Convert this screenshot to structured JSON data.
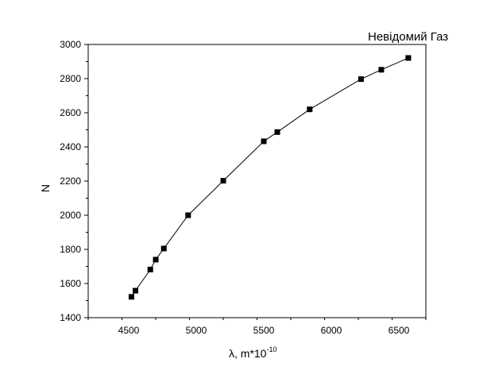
{
  "chart_data": {
    "type": "line",
    "title": "Невідомий Газ",
    "xlabel_main": "λ, m*10",
    "xlabel_exponent": "-10",
    "ylabel": "N",
    "xlim": [
      4200,
      6700
    ],
    "ylim": [
      1400,
      3000
    ],
    "xticks": [
      4500,
      5000,
      5500,
      6000,
      6500
    ],
    "yticks": [
      1400,
      1600,
      1800,
      2000,
      2200,
      2400,
      2600,
      2800,
      3000
    ],
    "grid": false,
    "marker": "square",
    "series": [
      {
        "x": [
          4520,
          4550,
          4660,
          4700,
          4760,
          4940,
          5200,
          5500,
          5600,
          5840,
          6220,
          6370,
          6570
        ],
        "y": [
          1522,
          1558,
          1682,
          1740,
          1805,
          2000,
          2202,
          2433,
          2487,
          2620,
          2797,
          2852,
          2921
        ]
      }
    ]
  }
}
